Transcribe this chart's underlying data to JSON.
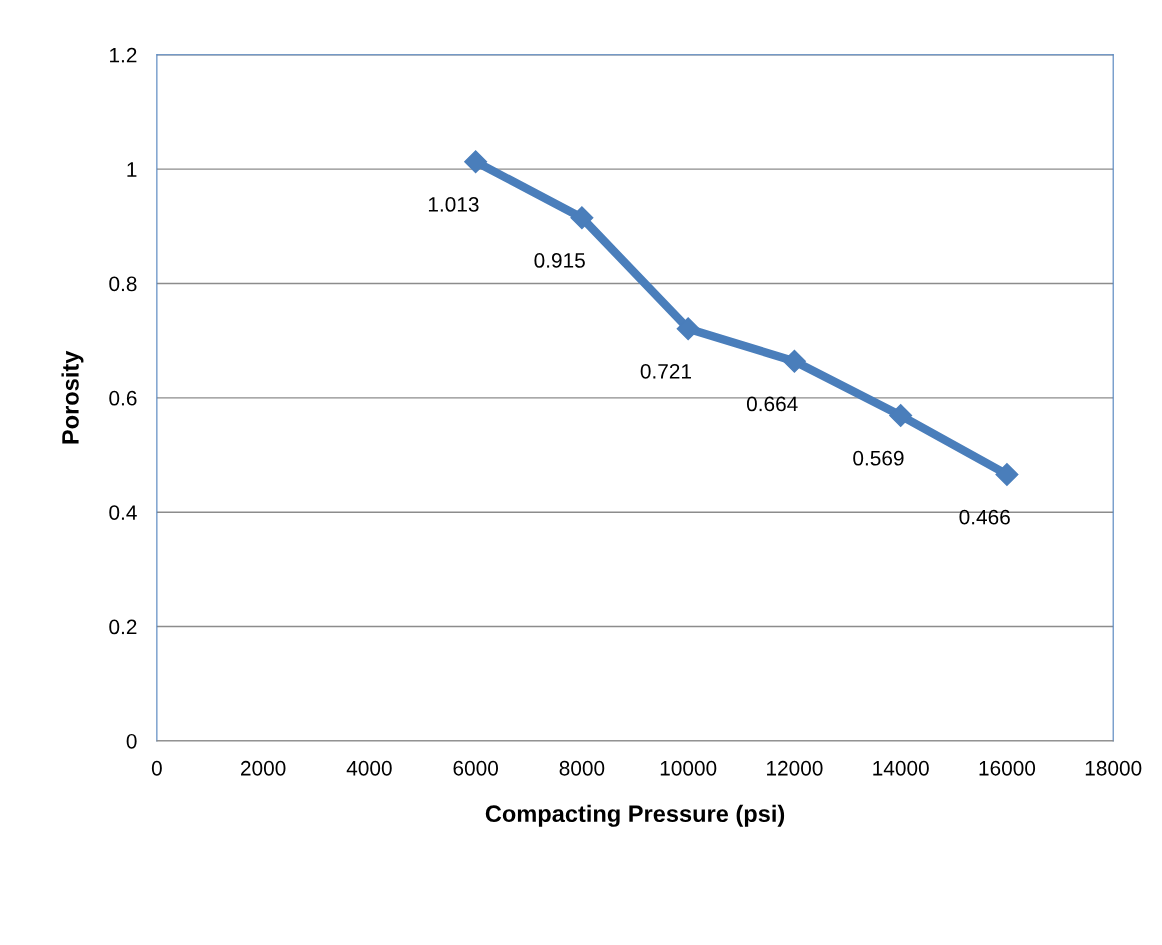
{
  "chart_data": {
    "type": "line",
    "xlabel": "Compacting Pressure (psi)",
    "ylabel": "Porosity",
    "x": [
      6000,
      8000,
      10000,
      12000,
      14000,
      16000
    ],
    "series": [
      {
        "color": "#4a7ebb",
        "values": [
          1.013,
          0.915,
          0.721,
          0.664,
          0.569,
          0.466
        ]
      }
    ],
    "xlim": [
      0,
      18000
    ],
    "xticks": [
      0,
      2000,
      4000,
      6000,
      8000,
      10000,
      12000,
      14000,
      16000,
      18000
    ],
    "ylim": [
      0,
      1.2
    ],
    "yticks": [
      0,
      0.2,
      0.4,
      0.6,
      0.8,
      1,
      1.2
    ],
    "grid": "y",
    "marker": "diamond",
    "line_style": "solid",
    "data_labels": true
  }
}
